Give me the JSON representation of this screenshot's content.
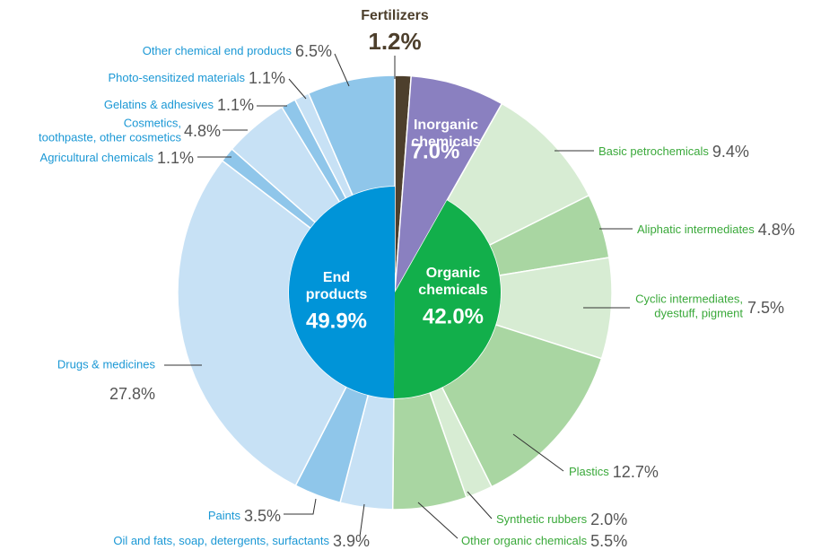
{
  "chart_data": {
    "type": "sunburst",
    "segments": [
      {
        "name": [
          "Fertilizers"
        ],
        "value": 1.2,
        "value_label": "1.2%",
        "color": "#4d3f2c"
      },
      {
        "name": [
          "Inorganic",
          "chemicals"
        ],
        "value": 7.0,
        "value_label": "7.0%",
        "color": "#8a80c0"
      },
      {
        "name": [
          "Basic petrochemicals"
        ],
        "value": 9.4,
        "value_label": "9.4%",
        "color": "#d7ecd3"
      },
      {
        "name": [
          "Aliphatic intermediates"
        ],
        "value": 4.8,
        "value_label": "4.8%",
        "color": "#a9d6a2"
      },
      {
        "name": [
          "Cyclic intermediates,",
          "dyestuff, pigment"
        ],
        "value": 7.5,
        "value_label": "7.5%",
        "color": "#d7ecd3"
      },
      {
        "name": [
          "Plastics"
        ],
        "value": 12.7,
        "value_label": "12.7%",
        "color": "#a9d6a2"
      },
      {
        "name": [
          "Synthetic rubbers"
        ],
        "value": 2.0,
        "value_label": "2.0%",
        "color": "#d7ecd3"
      },
      {
        "name": [
          "Other organic chemicals"
        ],
        "value": 5.5,
        "value_label": "5.5%",
        "color": "#a9d6a2"
      },
      {
        "name": [
          "Oil and fats, soap, detergents, surfactants"
        ],
        "value": 3.9,
        "value_label": "3.9%",
        "color": "#c7e1f5"
      },
      {
        "name": [
          "Paints"
        ],
        "value": 3.5,
        "value_label": "3.5%",
        "color": "#8fc6ea"
      },
      {
        "name": [
          "Drugs & medicines"
        ],
        "value": 27.8,
        "value_label": "27.8%",
        "color": "#c7e1f5"
      },
      {
        "name": [
          "Agricultural chemicals"
        ],
        "value": 1.1,
        "value_label": "1.1%",
        "color": "#8fc6ea"
      },
      {
        "name": [
          "Cosmetics,",
          "toothpaste, other cosmetics"
        ],
        "value": 4.8,
        "value_label": "4.8%",
        "color": "#c7e1f5"
      },
      {
        "name": [
          "Gelatins & adhesives"
        ],
        "value": 1.1,
        "value_label": "1.1%",
        "color": "#8fc6ea"
      },
      {
        "name": [
          "Photo-sensitized materials"
        ],
        "value": 1.1,
        "value_label": "1.1%",
        "color": "#c7e1f5"
      },
      {
        "name": [
          "Other chemical end products"
        ],
        "value": 6.5,
        "value_label": "6.5%",
        "color": "#8fc6ea"
      }
    ],
    "groups": [
      {
        "name": [
          "Organic",
          "chemicals"
        ],
        "value": 42.0,
        "value_label": "42.0%",
        "color": "#12af4b"
      },
      {
        "name": [
          "End",
          "products"
        ],
        "value": 49.9,
        "value_label": "49.9%",
        "color": "#0094d8"
      }
    ]
  }
}
